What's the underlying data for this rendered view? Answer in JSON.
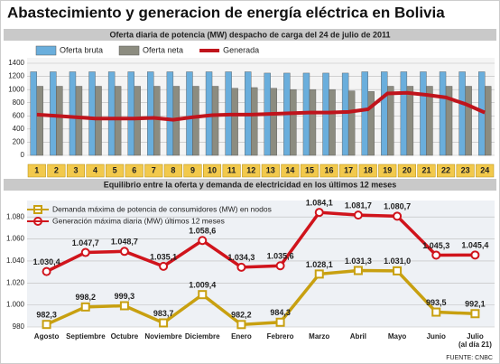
{
  "title": "Abastecimiento y generacion de energía eléctrica en Bolivia",
  "source": "FUENTE: CNBC",
  "chart_data": [
    {
      "type": "bar",
      "title": "Oferta diaria de potencia (MW) despacho de carga del 24 de julio de 2011",
      "categories": [
        "1",
        "2",
        "3",
        "4",
        "5",
        "6",
        "7",
        "8",
        "9",
        "10",
        "11",
        "12",
        "13",
        "14",
        "15",
        "16",
        "17",
        "18",
        "19",
        "20",
        "21",
        "22",
        "23",
        "24"
      ],
      "series": [
        {
          "name": "Oferta bruta",
          "color": "#6aaedc",
          "values": [
            1270,
            1270,
            1270,
            1270,
            1270,
            1270,
            1270,
            1270,
            1270,
            1270,
            1270,
            1270,
            1250,
            1250,
            1250,
            1250,
            1250,
            1270,
            1270,
            1270,
            1270,
            1270,
            1270,
            1270
          ]
        },
        {
          "name": "Oferta neta",
          "color": "#8c8c80",
          "values": [
            1050,
            1050,
            1050,
            1050,
            1050,
            1050,
            1050,
            1050,
            1050,
            1050,
            1020,
            1030,
            1020,
            1000,
            1000,
            1000,
            980,
            970,
            1050,
            1050,
            1050,
            1050,
            1050,
            1050
          ]
        },
        {
          "name": "Generada",
          "color": "#c0141c",
          "type": "line",
          "values": [
            620,
            600,
            580,
            560,
            560,
            560,
            570,
            540,
            580,
            610,
            620,
            620,
            630,
            640,
            650,
            650,
            660,
            700,
            940,
            950,
            920,
            880,
            780,
            650
          ]
        }
      ],
      "ylim": [
        0,
        1400
      ],
      "yticks": [
        0,
        200,
        400,
        600,
        800,
        1000,
        1200,
        1400
      ],
      "grid": true
    },
    {
      "type": "line",
      "title": "Equilibrio entre la oferta y demanda de electricidad en los últimos 12 meses",
      "categories": [
        "Agosto",
        "Septiembre",
        "Octubre",
        "Noviembre",
        "Diciembre",
        "Enero",
        "Febrero",
        "Marzo",
        "Abril",
        "Mayo",
        "Junio",
        "Julio\n(al día 21)"
      ],
      "series": [
        {
          "name": "Demanda máxima de potencia de consumidores (MW) en nodos",
          "color": "#c8a010",
          "marker": "square",
          "values": [
            982.3,
            998.2,
            999.3,
            983.7,
            1009.4,
            982.2,
            984.3,
            1028.1,
            1031.3,
            1031.0,
            993.5,
            992.1
          ],
          "value_labels": [
            "982,3",
            "998,2",
            "999,3",
            "983,7",
            "1.009,4",
            "982,2",
            "984,3",
            "1.028,1",
            "1.031,3",
            "1.031,0",
            "993,5",
            "992,1"
          ]
        },
        {
          "name": "Generación máxima diaria (MW) últimos 12 meses",
          "color": "#d0141c",
          "marker": "circle",
          "values": [
            1030.4,
            1047.7,
            1048.7,
            1035.1,
            1058.6,
            1034.3,
            1035.6,
            1084.1,
            1081.7,
            1080.7,
            1045.3,
            1045.4
          ],
          "value_labels": [
            "1.030,4",
            "1.047,7",
            "1.048,7",
            "1.035,1",
            "1.058,6",
            "1.034,3",
            "1.035,6",
            "1.084,1",
            "1.081,7",
            "1.080,7",
            "1.045,3",
            "1.045,4"
          ]
        }
      ],
      "ylim": [
        980,
        1090
      ],
      "yticks": [
        {
          "value": 980,
          "label": "980"
        },
        {
          "value": 1000,
          "label": "1.000"
        },
        {
          "value": 1020,
          "label": "1.020"
        },
        {
          "value": 1040,
          "label": "1.040"
        },
        {
          "value": 1060,
          "label": "1.060"
        },
        {
          "value": 1080,
          "label": "1.080"
        }
      ],
      "grid": true
    }
  ]
}
